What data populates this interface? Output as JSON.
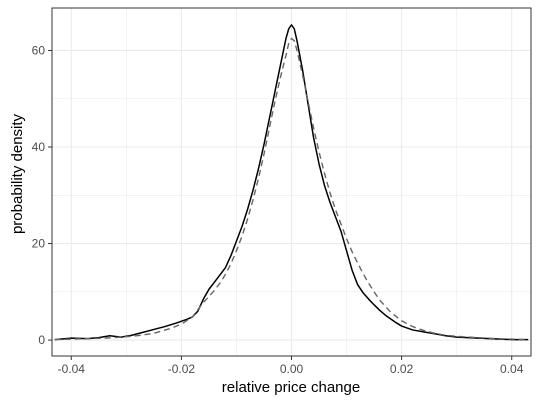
{
  "chart_data": {
    "type": "line",
    "title": "",
    "xlabel": "relative price change",
    "ylabel": "probability density",
    "xlim": [
      -0.0435,
      0.0435
    ],
    "ylim": [
      -3.3,
      68.8
    ],
    "x_ticks": [
      -0.04,
      -0.02,
      0.0,
      0.02,
      0.04
    ],
    "x_tick_labels": [
      "-0.04",
      "-0.02",
      "0.00",
      "0.02",
      "0.04"
    ],
    "x_minor_ticks": [
      -0.03,
      -0.01,
      0.01,
      0.03
    ],
    "y_ticks": [
      0,
      20,
      40,
      60
    ],
    "y_tick_labels": [
      "0",
      "20",
      "40",
      "60"
    ],
    "y_minor_ticks": [
      10,
      30,
      50
    ],
    "grid": true,
    "legend": "none",
    "colors": {
      "solid": "#000000",
      "dashed": "#666666",
      "grid": "#ebebeb",
      "panel_border": "#333333"
    },
    "series": [
      {
        "style": "solid",
        "x": [
          -0.043,
          -0.04,
          -0.037,
          -0.035,
          -0.033,
          -0.031,
          -0.029,
          -0.027,
          -0.025,
          -0.023,
          -0.021,
          -0.019,
          -0.018,
          -0.017,
          -0.016,
          -0.015,
          -0.014,
          -0.013,
          -0.012,
          -0.011,
          -0.01,
          -0.009,
          -0.008,
          -0.007,
          -0.006,
          -0.005,
          -0.004,
          -0.003,
          -0.002,
          -0.001,
          -0.0005,
          0.0,
          0.0005,
          0.001,
          0.002,
          0.003,
          0.004,
          0.005,
          0.006,
          0.007,
          0.008,
          0.009,
          0.01,
          0.011,
          0.012,
          0.013,
          0.014,
          0.015,
          0.016,
          0.017,
          0.018,
          0.019,
          0.02,
          0.022,
          0.024,
          0.026,
          0.028,
          0.03,
          0.032,
          0.034,
          0.036,
          0.038,
          0.04,
          0.043
        ],
        "y": [
          0.1,
          0.4,
          0.3,
          0.5,
          0.9,
          0.6,
          1.0,
          1.6,
          2.2,
          2.8,
          3.5,
          4.3,
          4.8,
          6.0,
          8.5,
          10.5,
          12.0,
          13.5,
          15.0,
          17.5,
          20.5,
          23.5,
          27.0,
          31.0,
          35.5,
          40.5,
          46.0,
          51.5,
          57.0,
          62.5,
          64.5,
          65.3,
          64.5,
          62.0,
          56.0,
          49.0,
          42.0,
          36.5,
          32.0,
          28.5,
          25.5,
          22.5,
          18.5,
          14.5,
          11.5,
          9.8,
          8.5,
          7.3,
          6.2,
          5.2,
          4.4,
          3.6,
          2.9,
          2.1,
          1.7,
          1.3,
          0.9,
          0.6,
          0.5,
          0.4,
          0.3,
          0.2,
          0.1,
          0.1
        ]
      },
      {
        "style": "dashed",
        "x": [
          -0.043,
          -0.04,
          -0.037,
          -0.034,
          -0.031,
          -0.028,
          -0.025,
          -0.022,
          -0.02,
          -0.018,
          -0.017,
          -0.016,
          -0.015,
          -0.014,
          -0.013,
          -0.012,
          -0.011,
          -0.01,
          -0.009,
          -0.008,
          -0.007,
          -0.006,
          -0.005,
          -0.004,
          -0.003,
          -0.002,
          -0.001,
          -0.0005,
          0.0,
          0.0005,
          0.001,
          0.002,
          0.003,
          0.004,
          0.005,
          0.006,
          0.007,
          0.008,
          0.009,
          0.01,
          0.011,
          0.012,
          0.013,
          0.014,
          0.015,
          0.016,
          0.018,
          0.02,
          0.022,
          0.024,
          0.026,
          0.028,
          0.031,
          0.034,
          0.037,
          0.04,
          0.043
        ],
        "y": [
          0.1,
          0.2,
          0.3,
          0.4,
          0.6,
          0.9,
          1.4,
          2.4,
          3.3,
          4.8,
          6.3,
          7.8,
          9.0,
          10.3,
          11.8,
          13.6,
          15.8,
          18.5,
          21.5,
          25.0,
          29.0,
          33.5,
          38.5,
          44.0,
          49.5,
          54.5,
          59.0,
          61.5,
          62.5,
          62.0,
          60.0,
          55.0,
          49.5,
          44.0,
          39.0,
          34.5,
          30.5,
          27.0,
          24.0,
          21.0,
          18.3,
          16.0,
          13.8,
          11.8,
          10.0,
          8.3,
          5.8,
          4.0,
          2.8,
          2.0,
          1.4,
          1.0,
          0.7,
          0.5,
          0.3,
          0.2,
          0.1
        ]
      }
    ]
  }
}
